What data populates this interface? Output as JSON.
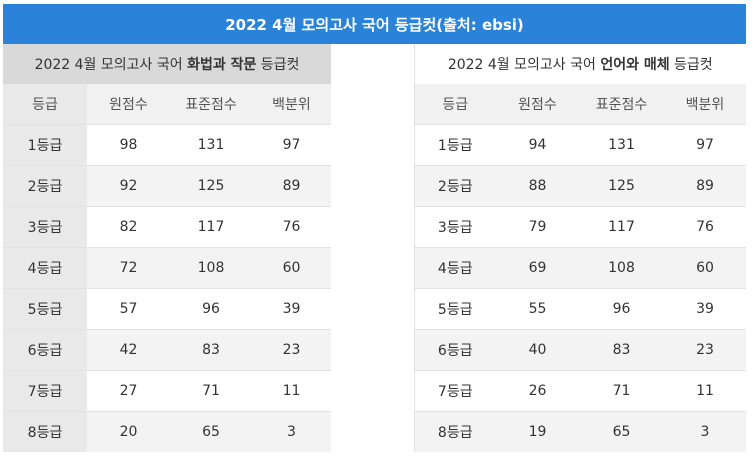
{
  "banner_title": "2022 4월 모의고사 국어 등급컷(출처: ebsi)",
  "left": {
    "title_prefix": "2022 4월 모의고사 국어 ",
    "title_bold": "화법과 작문",
    "title_suffix": " 등급컷",
    "headers": [
      "등급",
      "원점수",
      "표준점수",
      "백분위"
    ],
    "rows": [
      [
        "1등급",
        "98",
        "131",
        "97"
      ],
      [
        "2등급",
        "92",
        "125",
        "89"
      ],
      [
        "3등급",
        "82",
        "117",
        "76"
      ],
      [
        "4등급",
        "72",
        "108",
        "60"
      ],
      [
        "5등급",
        "57",
        "96",
        "39"
      ],
      [
        "6등급",
        "42",
        "83",
        "23"
      ],
      [
        "7등급",
        "27",
        "71",
        "11"
      ],
      [
        "8등급",
        "20",
        "65",
        "3"
      ]
    ]
  },
  "right": {
    "title_prefix": "2022 4월 모의고사 국어 ",
    "title_bold": "언어와 매체",
    "title_suffix": " 등급컷",
    "headers": [
      "등급",
      "원점수",
      "표준점수",
      "백분위"
    ],
    "rows": [
      [
        "1등급",
        "94",
        "131",
        "97"
      ],
      [
        "2등급",
        "88",
        "125",
        "89"
      ],
      [
        "3등급",
        "79",
        "117",
        "76"
      ],
      [
        "4등급",
        "69",
        "108",
        "60"
      ],
      [
        "5등급",
        "55",
        "96",
        "39"
      ],
      [
        "6등급",
        "40",
        "83",
        "23"
      ],
      [
        "7등급",
        "26",
        "71",
        "11"
      ],
      [
        "8등급",
        "19",
        "65",
        "3"
      ]
    ]
  }
}
